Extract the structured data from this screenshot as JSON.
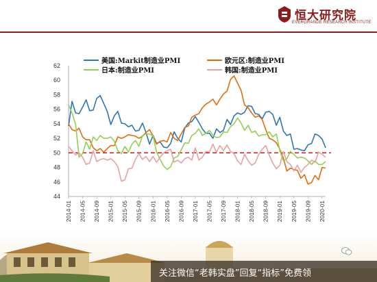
{
  "header": {
    "logo_cn": "恒大研究院",
    "logo_en": "EVERGRANDE RESEARCH INSTITUTE"
  },
  "footer": {
    "text": "关注微信“老韩实盘”回复“指标”免费领"
  },
  "colors": {
    "brand": "#8e1b1b",
    "us": "#2e74b5",
    "eu": "#e36c0a",
    "jp": "#92d050",
    "kr": "#e8a0a0",
    "threshold": "#e00000"
  },
  "chart_data": {
    "type": "line",
    "ylim": [
      44,
      62
    ],
    "yticks": [
      44,
      46,
      48,
      50,
      52,
      54,
      56,
      58,
      60,
      62
    ],
    "xticks": [
      "2014-01",
      "2014-05",
      "2014-09",
      "2015-01",
      "2015-05",
      "2015-09",
      "2016-01",
      "2016-05",
      "2016-09",
      "2017-01",
      "2017-05",
      "2017-09",
      "2018-01",
      "2018-05",
      "2018-09",
      "2019-01",
      "2019-05",
      "2019-09",
      "2020-01"
    ],
    "reference_line": 50,
    "series": [
      {
        "name": "美国:Markit制造业PMI",
        "color": "#2e74b5",
        "values": [
          53.7,
          57.1,
          55.5,
          55.4,
          56.3,
          57.3,
          55.8,
          55.9,
          57.5,
          57.9,
          56.8,
          55.7,
          53.9,
          55.1,
          55.7,
          54.1,
          54.0,
          53.6,
          53.8,
          53.0,
          53.1,
          54.1,
          52.8,
          51.2,
          52.4,
          51.3,
          51.5,
          50.8,
          50.7,
          51.3,
          52.9,
          52.0,
          51.5,
          53.4,
          54.1,
          54.3,
          55.0,
          54.2,
          53.3,
          52.7,
          52.7,
          52.0,
          53.3,
          52.8,
          53.1,
          54.6,
          53.9,
          55.1,
          55.5,
          55.3,
          55.6,
          56.5,
          56.4,
          55.4,
          55.3,
          54.7,
          55.6,
          55.7,
          55.3,
          53.8,
          54.9,
          53.0,
          52.4,
          52.6,
          50.5,
          50.6,
          50.4,
          50.3,
          51.1,
          51.3,
          52.6,
          52.4,
          51.9,
          50.7
        ]
      },
      {
        "name": "欧元区:制造业PMI",
        "color": "#e36c0a",
        "values": [
          54.0,
          53.2,
          53.0,
          53.4,
          52.2,
          51.8,
          51.8,
          50.7,
          50.3,
          50.6,
          50.1,
          50.6,
          51.0,
          51.0,
          52.2,
          52.0,
          52.2,
          52.5,
          52.4,
          52.3,
          52.0,
          52.3,
          52.8,
          53.2,
          52.3,
          51.2,
          51.6,
          51.7,
          51.5,
          52.8,
          52.0,
          51.7,
          52.6,
          53.5,
          53.7,
          54.9,
          55.2,
          55.4,
          56.2,
          56.7,
          57.0,
          57.4,
          56.6,
          57.4,
          58.1,
          58.5,
          60.1,
          60.6,
          59.6,
          58.6,
          56.6,
          56.2,
          55.5,
          54.9,
          55.1,
          54.6,
          53.2,
          52.0,
          51.8,
          51.4,
          50.5,
          49.3,
          47.5,
          47.9,
          47.7,
          47.6,
          46.5,
          47.0,
          45.7,
          45.9,
          46.9,
          46.3,
          48.0,
          47.9
        ]
      },
      {
        "name": "日本:制造业PMI",
        "color": "#92d050",
        "values": [
          56.6,
          55.5,
          53.9,
          49.4,
          49.9,
          51.5,
          50.5,
          52.2,
          51.7,
          52.4,
          52.0,
          52.0,
          52.2,
          51.6,
          50.3,
          49.9,
          50.9,
          50.1,
          51.2,
          51.7,
          50.9,
          52.4,
          52.6,
          52.6,
          52.3,
          50.1,
          49.1,
          48.2,
          47.7,
          48.1,
          49.3,
          49.5,
          50.4,
          51.4,
          51.3,
          52.4,
          52.7,
          53.3,
          52.4,
          52.7,
          53.1,
          52.4,
          52.1,
          52.2,
          52.9,
          52.8,
          53.6,
          54.0,
          54.8,
          54.1,
          53.1,
          53.8,
          52.8,
          53.0,
          52.3,
          52.5,
          52.5,
          52.9,
          52.2,
          52.6,
          50.3,
          48.9,
          49.2,
          50.2,
          49.8,
          49.3,
          49.4,
          49.3,
          48.9,
          48.4,
          48.9,
          48.4,
          48.4,
          48.8
        ]
      },
      {
        "name": "韩国:制造业PMI",
        "color": "#e8a0a0",
        "values": [
          50.9,
          50.3,
          49.7,
          50.0,
          49.4,
          48.4,
          48.6,
          50.3,
          48.8,
          49.1,
          49.2,
          49.0,
          49.2,
          48.8,
          48.1,
          46.1,
          46.3,
          47.8,
          47.9,
          49.1,
          49.9,
          49.1,
          49.5,
          48.8,
          49.5,
          48.7,
          49.4,
          50.0,
          50.3,
          50.5,
          48.7,
          49.0,
          48.6,
          49.2,
          49.4,
          49.0,
          50.7,
          49.0,
          49.4,
          50.2,
          50.1,
          51.2,
          50.1,
          51.0,
          50.3,
          51.1,
          50.2,
          49.9,
          48.9,
          48.4,
          49.8,
          48.9,
          48.3,
          48.6,
          49.8,
          50.5,
          51.0,
          49.7,
          48.6,
          47.8,
          48.3,
          50.2,
          48.8,
          48.4,
          47.5,
          48.3,
          47.3,
          48.0,
          48.4,
          49.0,
          48.7,
          50.1,
          49.8,
          49.4
        ]
      }
    ]
  }
}
